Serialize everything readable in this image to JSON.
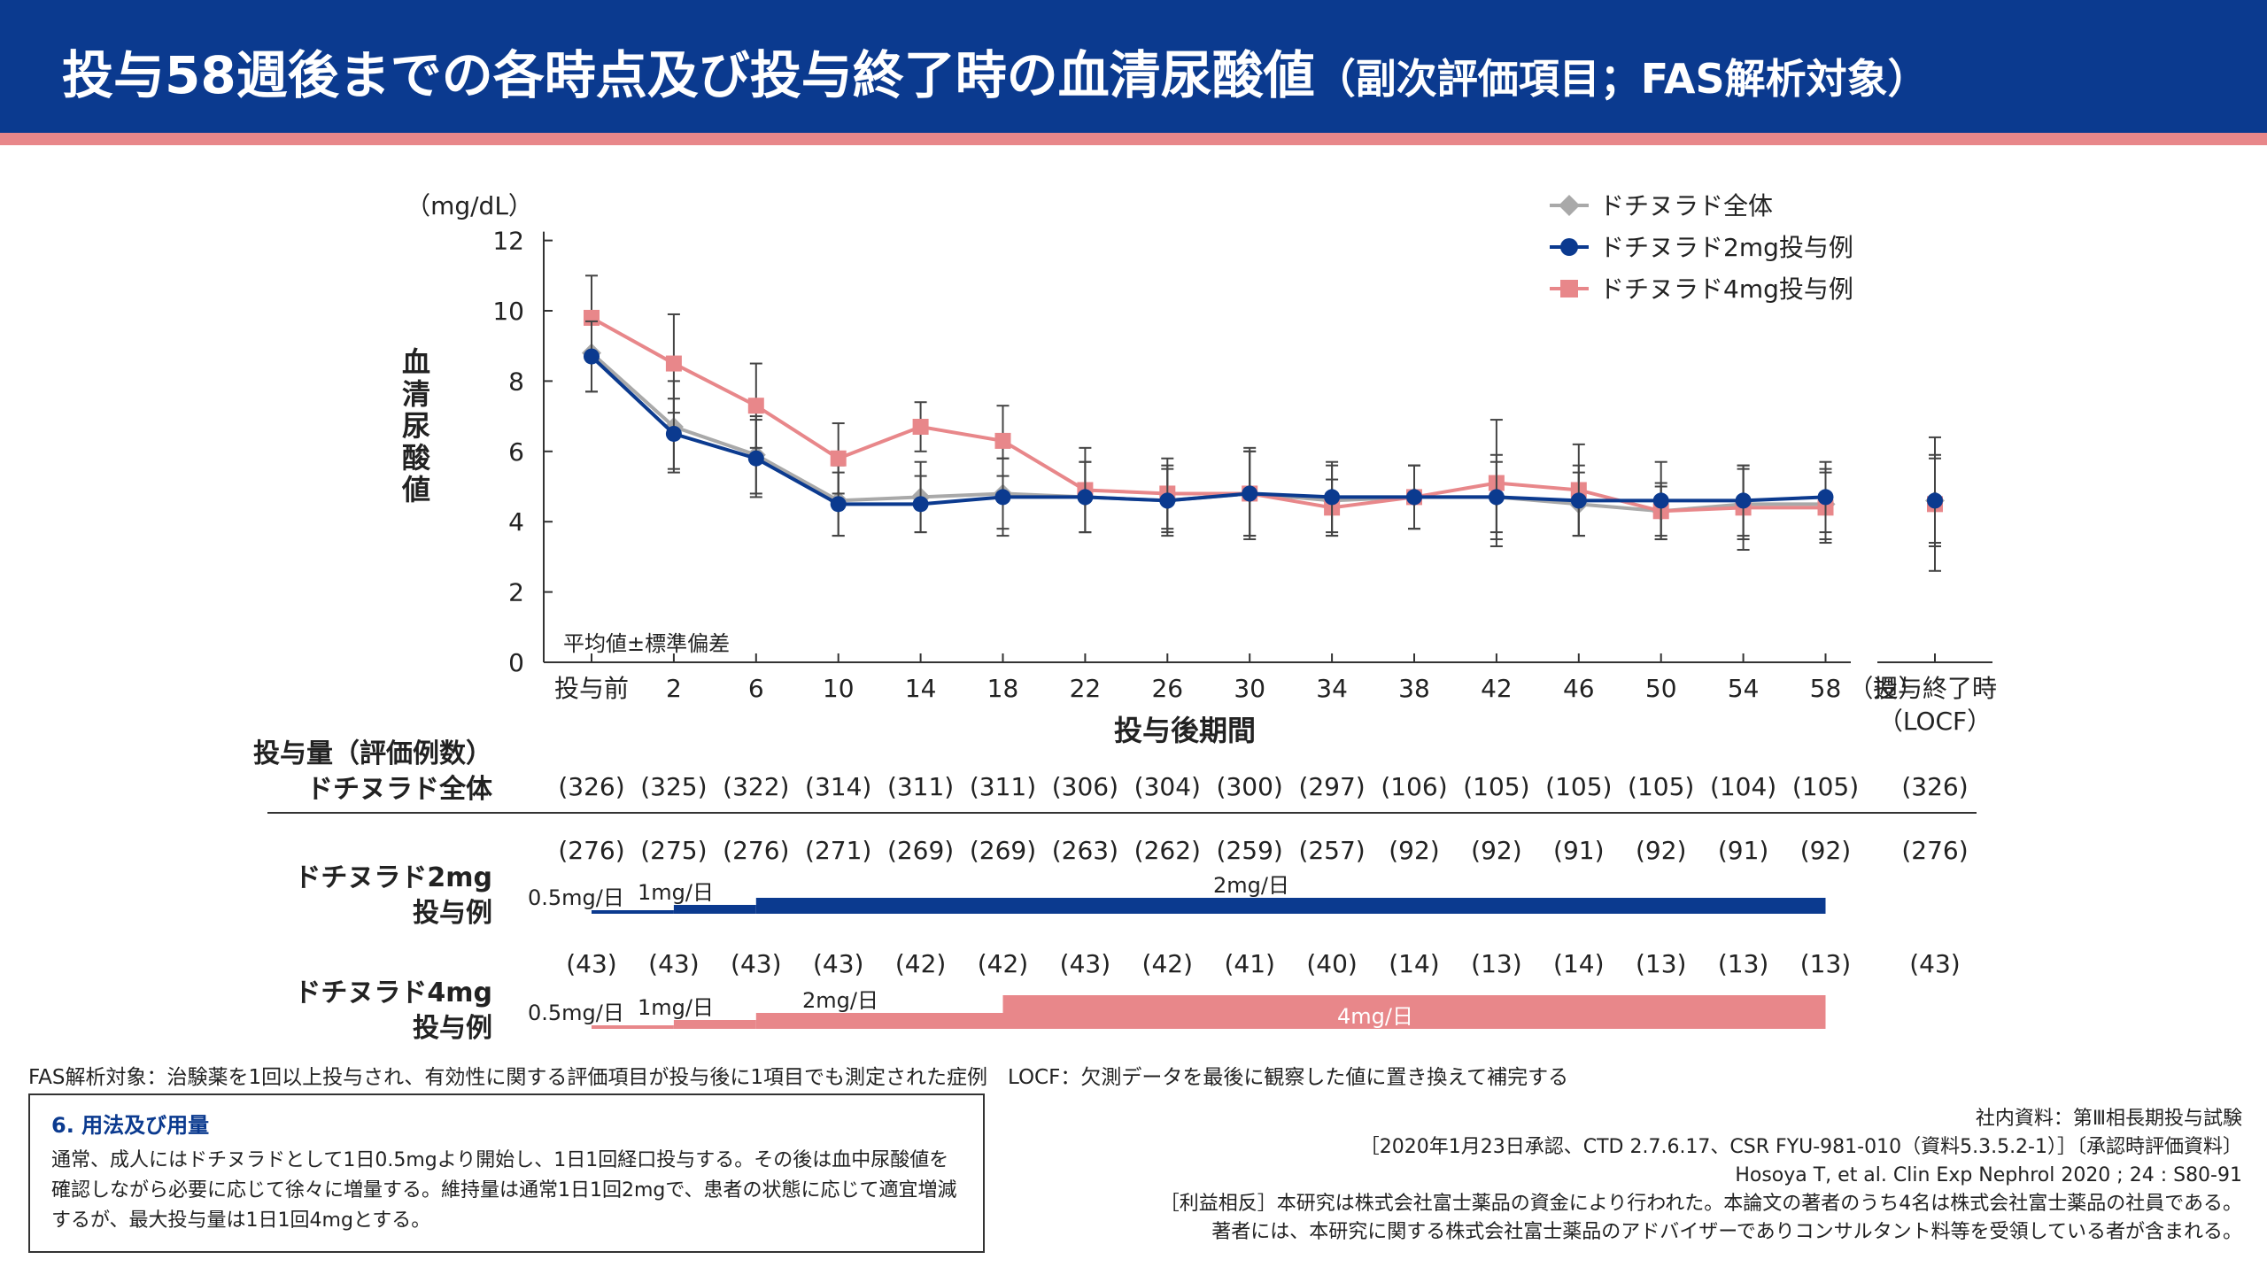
{
  "header": {
    "title": "投与58週後までの各時点及び投与終了時の血清尿酸値",
    "subtitle": "（副次評価項目；FAS解析対象）"
  },
  "chart_data": {
    "type": "line",
    "unit_label": "（mg/dL）",
    "ylabel": "血清尿酸値",
    "xlabel": "投与後期間",
    "ylim": [
      0,
      12
    ],
    "yticks": [
      0,
      2,
      4,
      6,
      8,
      10,
      12
    ],
    "categories": [
      "投与前",
      "2",
      "6",
      "10",
      "14",
      "18",
      "22",
      "26",
      "30",
      "34",
      "38",
      "42",
      "46",
      "50",
      "54",
      "58"
    ],
    "x_suffix": "（週）",
    "end_label_line1": "投与終了時",
    "end_label_line2": "（LOCF）",
    "stat_note": "平均値±標準偏差",
    "legend_position": "top-right",
    "series": [
      {
        "name": "ドチヌラド全体",
        "color": "#a9a9a9",
        "marker": "diamond",
        "values": [
          8.8,
          6.7,
          5.9,
          4.6,
          4.7,
          4.8,
          4.7,
          4.6,
          4.8,
          4.6,
          4.7,
          4.7,
          4.5,
          4.3,
          4.5,
          4.5
        ],
        "sd": [
          1.1,
          1.3,
          1.1,
          1.0,
          1.0,
          1.0,
          1.0,
          1.0,
          1.2,
          1.0,
          0.9,
          1.0,
          0.9,
          0.8,
          1.0,
          1.0
        ],
        "end_value": 4.6,
        "end_sd": 1.3
      },
      {
        "name": "ドチヌラド2mg投与例",
        "color": "#0b3a8f",
        "marker": "circle",
        "values": [
          8.7,
          6.5,
          5.8,
          4.5,
          4.5,
          4.7,
          4.7,
          4.6,
          4.8,
          4.7,
          4.7,
          4.7,
          4.6,
          4.6,
          4.6,
          4.7
        ],
        "sd": [
          1.0,
          1.0,
          1.1,
          0.9,
          0.8,
          1.1,
          1.0,
          0.9,
          1.3,
          1.0,
          0.9,
          1.2,
          1.0,
          1.1,
          1.0,
          1.0
        ],
        "end_value": 4.6,
        "end_sd": 1.2
      },
      {
        "name": "ドチヌラド4mg投与例",
        "color": "#e8878a",
        "marker": "square",
        "values": [
          9.8,
          8.5,
          7.3,
          5.8,
          6.7,
          6.3,
          4.9,
          4.8,
          4.8,
          4.4,
          4.7,
          5.1,
          4.9,
          4.3,
          4.4,
          4.4
        ],
        "sd": [
          1.2,
          1.4,
          1.2,
          1.0,
          0.7,
          1.0,
          1.2,
          1.0,
          1.2,
          0.8,
          0.9,
          1.8,
          1.3,
          0.7,
          1.2,
          1.0
        ],
        "end_value": 4.5,
        "end_sd": 1.9
      }
    ]
  },
  "table": {
    "header_line1": "投与量（評価例数）",
    "header_line2": "ドチヌラド全体",
    "all": [
      "(326)",
      "(325)",
      "(322)",
      "(314)",
      "(311)",
      "(311)",
      "(306)",
      "(304)",
      "(300)",
      "(297)",
      "(106)",
      "(105)",
      "(105)",
      "(105)",
      "(104)",
      "(105)"
    ],
    "all_end": "(326)",
    "mg2": [
      "(276)",
      "(275)",
      "(276)",
      "(271)",
      "(269)",
      "(269)",
      "(263)",
      "(262)",
      "(259)",
      "(257)",
      "(92)",
      "(92)",
      "(91)",
      "(92)",
      "(91)",
      "(92)"
    ],
    "mg2_end": "(276)",
    "mg4": [
      "(43)",
      "(43)",
      "(43)",
      "(43)",
      "(42)",
      "(42)",
      "(43)",
      "(42)",
      "(41)",
      "(40)",
      "(14)",
      "(13)",
      "(14)",
      "(13)",
      "(13)",
      "(13)"
    ],
    "mg4_end": "(43)",
    "mg2_label_line1": "ドチヌラド2mg",
    "mg2_label_line2": "投与例",
    "mg4_label_line1": "ドチヌラド4mg",
    "mg4_label_line2": "投与例"
  },
  "dose": {
    "mg2": {
      "d05": "0.5mg/日",
      "d1": "1mg/日",
      "d2": "2mg/日"
    },
    "mg4": {
      "d05": "0.5mg/日",
      "d1": "1mg/日",
      "d2": "2mg/日",
      "d4": "4mg/日"
    }
  },
  "notes": {
    "fas": "FAS解析対象：治験薬を1回以上投与され、有効性に関する評価項目が投与後に1項目でも測定された症例　LOCF：欠測データを最後に観察した値に置き換えて補完する"
  },
  "usage": {
    "title": "6. 用法及び用量",
    "text": "通常、成人にはドチヌラドとして1日0.5mgより開始し、1日1回経口投与する。その後は血中尿酸値を確認しながら必要に応じて徐々に増量する。維持量は通常1日1回2mgで、患者の状態に応じて適宜増減するが、最大投与量は1日1回4mgとする。"
  },
  "references": {
    "line1": "社内資料：第Ⅲ相長期投与試験",
    "line2": "［2020年1月23日承認、CTD 2.7.6.17、CSR FYU-981-010（資料5.3.5.2-1）］〔承認時評価資料〕",
    "line3": "Hosoya T, et al. Clin Exp Nephrol 2020 ; 24 : S80-91",
    "line4": "［利益相反］本研究は株式会社富士薬品の資金により行われた。本論文の著者のうち4名は株式会社富士薬品の社員である。",
    "line5": "著者には、本研究に関する株式会社富士薬品のアドバイザーでありコンサルタント料等を受領している者が含まれる。"
  }
}
